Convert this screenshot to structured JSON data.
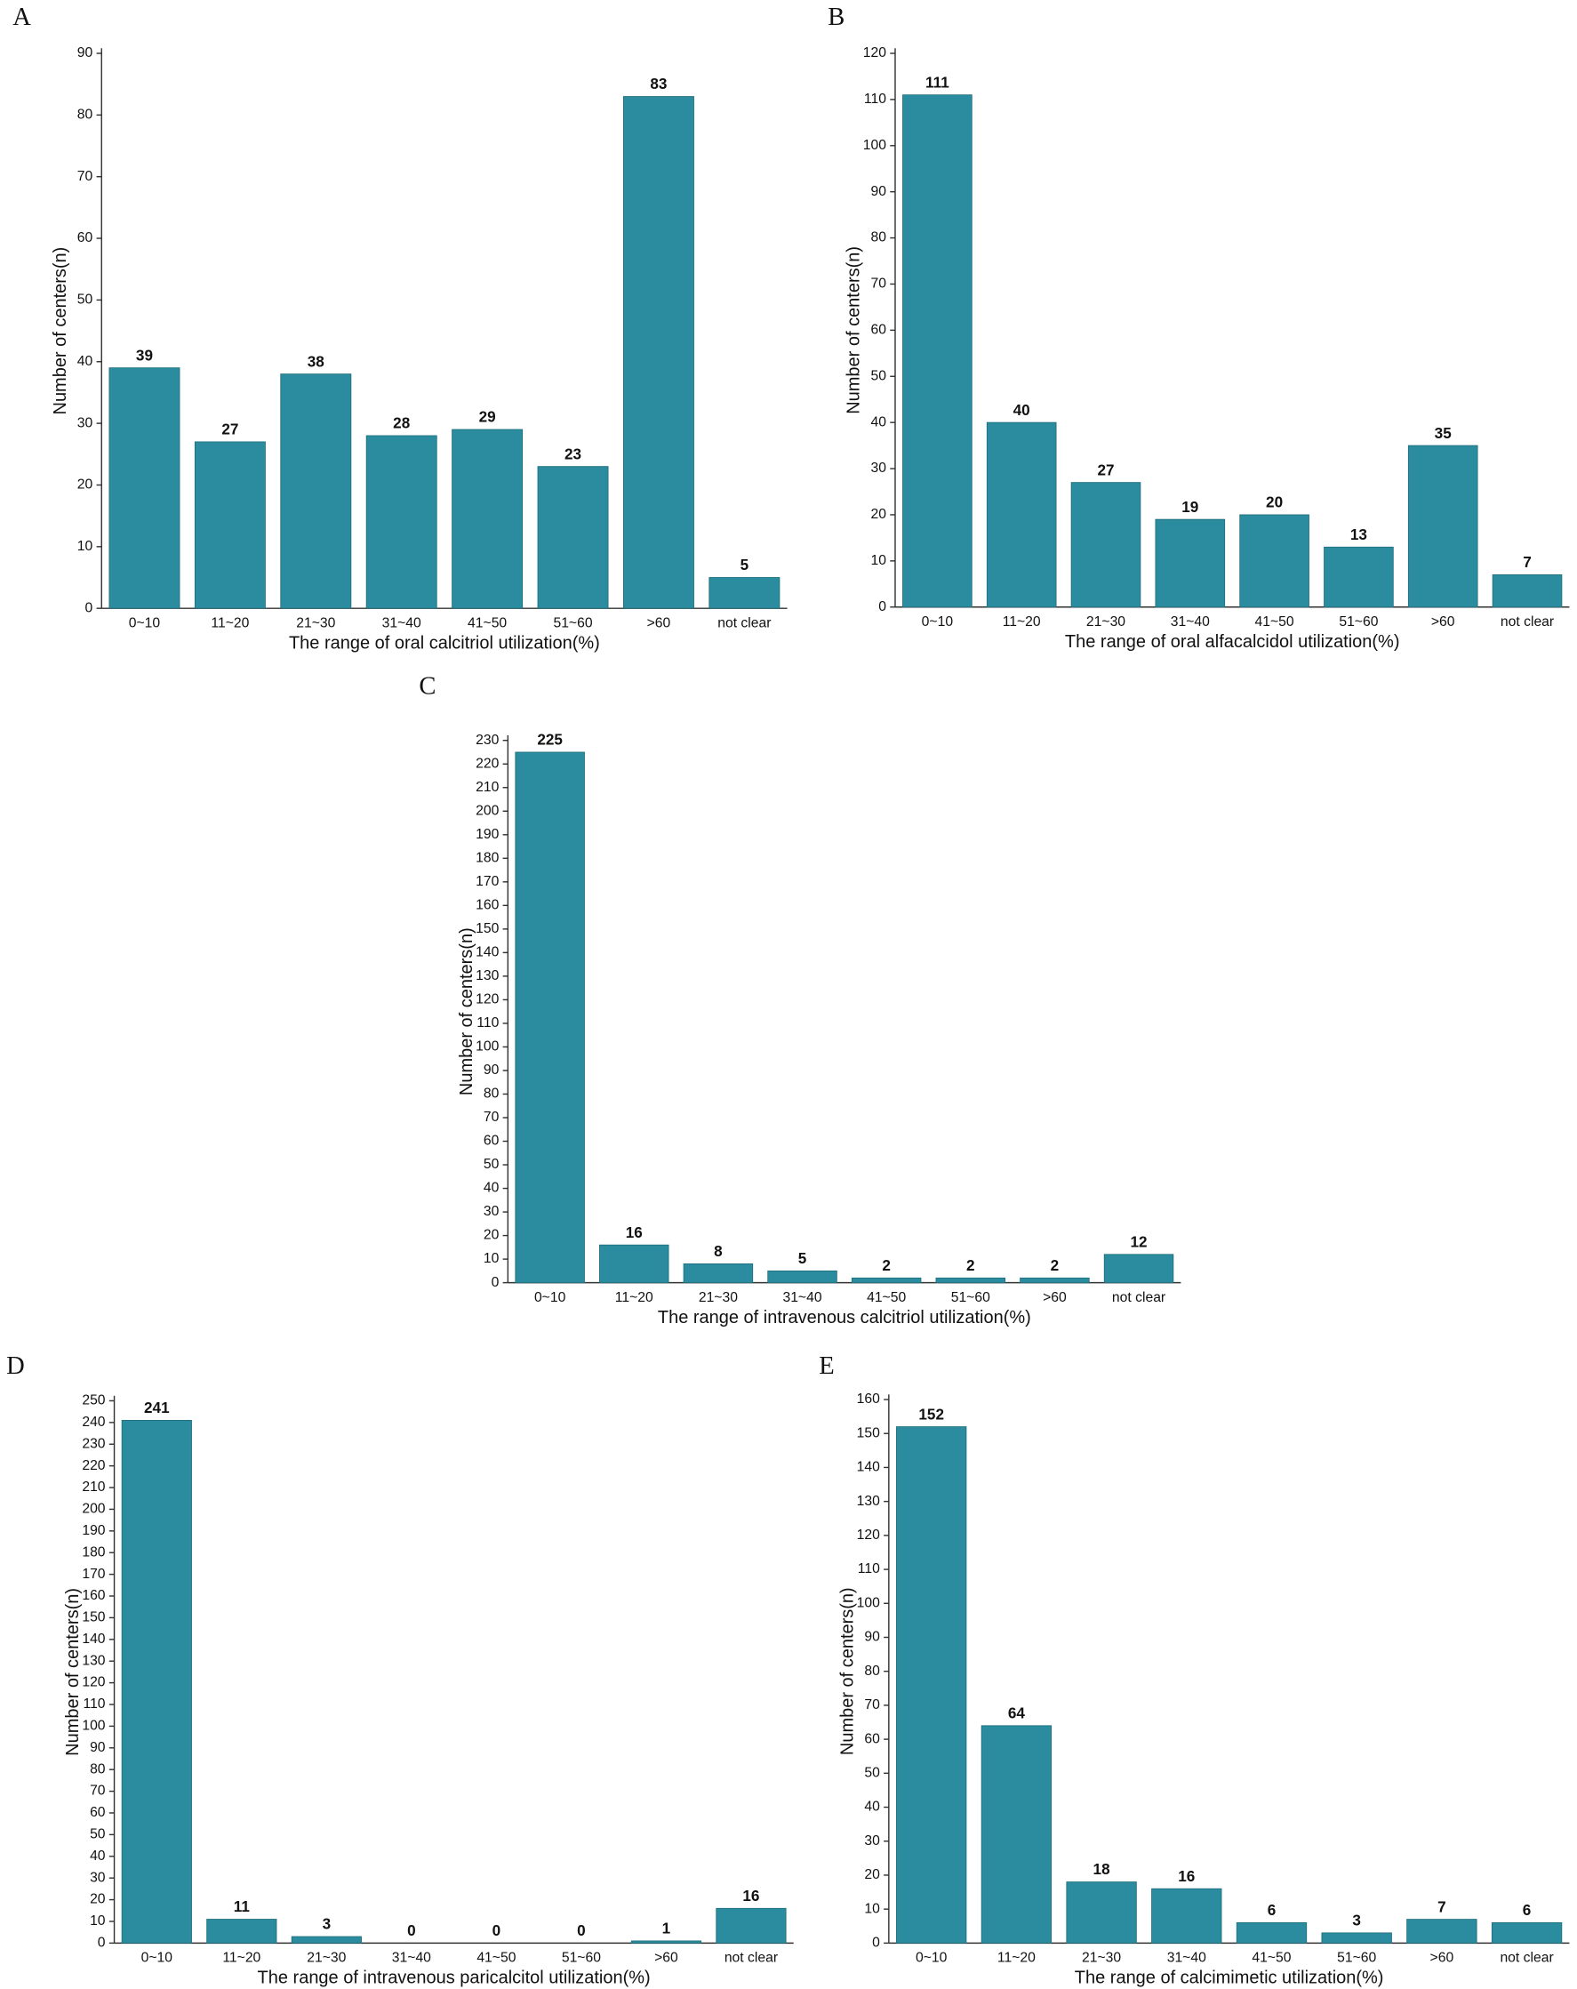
{
  "chart_data": [
    {
      "type": "bar",
      "panel": "A",
      "xlabel": "The range of oral calcitriol utilization(%)",
      "ylabel": "Number of centers(n)",
      "categories": [
        "0~10",
        "11~20",
        "21~30",
        "31~40",
        "41~50",
        "51~60",
        ">60",
        "not clear"
      ],
      "values": [
        39,
        27,
        38,
        28,
        29,
        23,
        83,
        5
      ],
      "color": "#2a8c9e",
      "ylim": [
        0,
        90
      ],
      "yticks": [
        0,
        10,
        20,
        30,
        40,
        50,
        60,
        70,
        80,
        90
      ]
    },
    {
      "type": "bar",
      "panel": "B",
      "xlabel": "The range of oral alfacalcidol utilization(%)",
      "ylabel": "Number of centers(n)",
      "categories": [
        "0~10",
        "11~20",
        "21~30",
        "31~40",
        "41~50",
        "51~60",
        ">60",
        "not clear"
      ],
      "values": [
        111,
        40,
        27,
        19,
        20,
        13,
        35,
        7
      ],
      "color": "#2a8c9e",
      "ylim": [
        0,
        120
      ],
      "yticks": [
        0,
        10,
        20,
        30,
        40,
        50,
        60,
        70,
        80,
        90,
        100,
        110,
        120
      ]
    },
    {
      "type": "bar",
      "panel": "C",
      "xlabel": "The range of intravenous calcitriol utilization(%)",
      "ylabel": "Number of centers(n)",
      "categories": [
        "0~10",
        "11~20",
        "21~30",
        "31~40",
        "41~50",
        "51~60",
        ">60",
        "not clear"
      ],
      "values": [
        225,
        16,
        8,
        5,
        2,
        2,
        2,
        12
      ],
      "color": "#2a8c9e",
      "ylim": [
        0,
        230
      ],
      "yticks": [
        0,
        10,
        20,
        30,
        40,
        50,
        60,
        70,
        80,
        90,
        100,
        110,
        120,
        130,
        140,
        150,
        160,
        170,
        180,
        190,
        200,
        210,
        220,
        230
      ]
    },
    {
      "type": "bar",
      "panel": "D",
      "xlabel": "The range of intravenous paricalcitol utilization(%)",
      "ylabel": "Number of centers(n)",
      "categories": [
        "0~10",
        "11~20",
        "21~30",
        "31~40",
        "41~50",
        "51~60",
        ">60",
        "not clear"
      ],
      "values": [
        241,
        11,
        3,
        0,
        0,
        0,
        1,
        16
      ],
      "color": "#2a8c9e",
      "ylim": [
        0,
        250
      ],
      "yticks": [
        0,
        10,
        20,
        30,
        40,
        50,
        60,
        70,
        80,
        90,
        100,
        110,
        120,
        130,
        140,
        150,
        160,
        170,
        180,
        190,
        200,
        210,
        220,
        230,
        240,
        250
      ]
    },
    {
      "type": "bar",
      "panel": "E",
      "xlabel": "The range of calcimimetic utilization(%)",
      "ylabel": "Number of centers(n)",
      "categories": [
        "0~10",
        "11~20",
        "21~30",
        "31~40",
        "41~50",
        "51~60",
        ">60",
        "not clear"
      ],
      "values": [
        152,
        64,
        18,
        16,
        6,
        3,
        7,
        6
      ],
      "color": "#2a8c9e",
      "ylim": [
        0,
        160
      ],
      "yticks": [
        0,
        10,
        20,
        30,
        40,
        50,
        60,
        70,
        80,
        90,
        100,
        110,
        120,
        130,
        140,
        150,
        160
      ]
    }
  ]
}
